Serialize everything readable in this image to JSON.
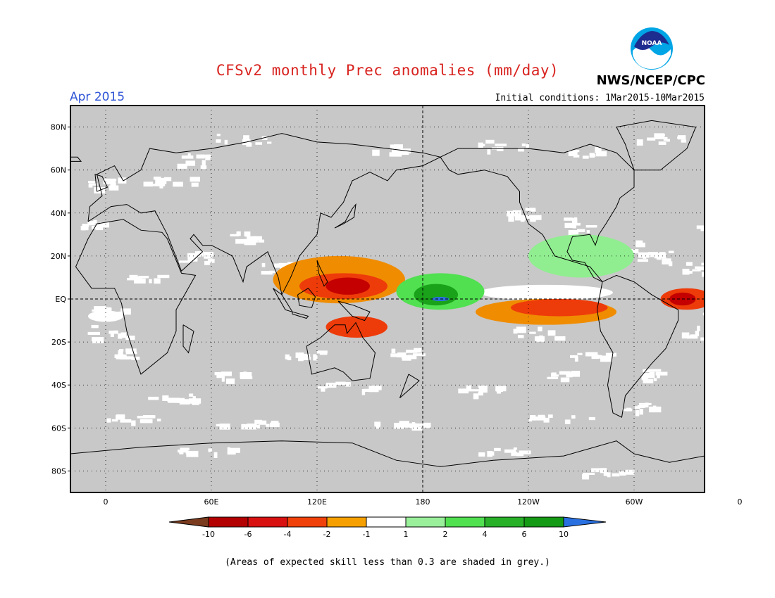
{
  "header": {
    "title": "CFSv2 monthly Prec anomalies (mm/day)",
    "month": "Apr 2015",
    "initial_conditions": "Initial conditions: 1Mar2015-10Mar2015",
    "agency": "NWS/NCEP/CPC",
    "logo_text": "NOAA"
  },
  "map": {
    "lat_labels": [
      "80N",
      "60N",
      "40N",
      "20N",
      "EQ",
      "20S",
      "40S",
      "60S",
      "80S"
    ],
    "lon_labels": [
      "0",
      "60E",
      "120E",
      "180",
      "120W",
      "60W",
      "0"
    ],
    "background_color": "#c8c8c8",
    "anomaly_regions": [
      {
        "name": "W-Pacific dry",
        "color": "#f08c00",
        "lon": [
          95,
          170
        ],
        "lat": [
          -2,
          20
        ]
      },
      {
        "name": "Maritime dry core",
        "color": "#ee3b0a",
        "lon": [
          110,
          160
        ],
        "lat": [
          0,
          12
        ]
      },
      {
        "name": "Philippines deep dry",
        "color": "#c40000",
        "lon": [
          125,
          150
        ],
        "lat": [
          2,
          10
        ]
      },
      {
        "name": "Australia N dry",
        "color": "#ee3b0a",
        "lon": [
          125,
          160
        ],
        "lat": [
          -18,
          -8
        ]
      },
      {
        "name": "Central Pacific wet",
        "color": "#50e050",
        "lon": [
          165,
          215
        ],
        "lat": [
          -5,
          12
        ]
      },
      {
        "name": "Central Pacific wet core",
        "color": "#1aa31a",
        "lon": [
          175,
          200
        ],
        "lat": [
          -3,
          7
        ]
      },
      {
        "name": "Central Pacific wettest",
        "color": "#2a70e0",
        "lon": [
          185,
          195
        ],
        "lat": [
          -1,
          1
        ]
      },
      {
        "name": "E Pacific dry",
        "color": "#f08c00",
        "lon": [
          210,
          290
        ],
        "lat": [
          -12,
          0
        ]
      },
      {
        "name": "E Pacific dry core",
        "color": "#ee3b0a",
        "lon": [
          230,
          285
        ],
        "lat": [
          -8,
          0
        ]
      },
      {
        "name": "NE Brazil dry",
        "color": "#ee3b0a",
        "lon": [
          315,
          345
        ],
        "lat": [
          -5,
          5
        ]
      },
      {
        "name": "NE Brazil deep dry",
        "color": "#c40000",
        "lon": [
          320,
          335
        ],
        "lat": [
          -3,
          3
        ]
      },
      {
        "name": "Caribbean wet",
        "color": "#90ee90",
        "lon": [
          240,
          300
        ],
        "lat": [
          10,
          30
        ]
      }
    ]
  },
  "colorbar": {
    "tick_labels": [
      "-10",
      "-6",
      "-4",
      "-2",
      "-1",
      "1",
      "2",
      "4",
      "6",
      "10"
    ],
    "colors": [
      "#7a3b1e",
      "#b30000",
      "#d81010",
      "#f0410a",
      "#f5a000",
      "#ffffff",
      "#9af09a",
      "#50e050",
      "#28b028",
      "#149a14",
      "#2a70e0"
    ]
  },
  "footnote": "(Areas of expected skill less than 0.3 are shaded in grey.)"
}
